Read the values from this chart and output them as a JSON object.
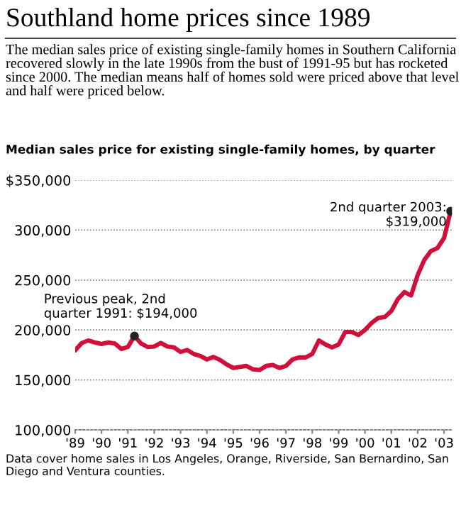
{
  "chart_data": {
    "type": "line",
    "title": "Southland home prices since 1989",
    "subtitle": "The median sales price of existing single-family homes in Southern California recovered slowly in the late 1990s from the bust of 1991-95 but has rocketed since 2000. The median means half of homes sold were priced above that level and half were priced below.",
    "ylabel": "Median sales price for existing single-family homes, by quarter",
    "x": [
      1989,
      1989.25,
      1989.5,
      1989.75,
      1990,
      1990.25,
      1990.5,
      1990.75,
      1991,
      1991.25,
      1991.5,
      1991.75,
      1992,
      1992.25,
      1992.5,
      1992.75,
      1993,
      1993.25,
      1993.5,
      1993.75,
      1994,
      1994.25,
      1994.5,
      1994.75,
      1995,
      1995.25,
      1995.5,
      1995.75,
      1996,
      1996.25,
      1996.5,
      1996.75,
      1997,
      1997.25,
      1997.5,
      1997.75,
      1998,
      1998.25,
      1998.5,
      1998.75,
      1999,
      1999.25,
      1999.5,
      1999.75,
      2000,
      2000.25,
      2000.5,
      2000.75,
      2001,
      2001.25,
      2001.5,
      2001.75,
      2002,
      2002.25,
      2002.5,
      2002.75,
      2003,
      2003.25
    ],
    "series": [
      {
        "color": "#d0103a",
        "values": [
          179500,
          187000,
          189500,
          187500,
          186000,
          187500,
          186500,
          181000,
          183000,
          194000,
          186500,
          183000,
          183500,
          187000,
          183500,
          182500,
          178000,
          180000,
          176000,
          174000,
          170500,
          173000,
          170000,
          165500,
          162000,
          163000,
          164000,
          160500,
          160000,
          164000,
          165000,
          162000,
          164000,
          170500,
          172500,
          172500,
          176000,
          189500,
          185500,
          182500,
          185500,
          198000,
          198000,
          195000,
          200000,
          207000,
          212000,
          213000,
          219000,
          231000,
          238000,
          234500,
          255000,
          270000,
          279000,
          282000,
          292000,
          319000
        ]
      }
    ],
    "xlim": [
      1989,
      2003.3
    ],
    "xticks": [
      {
        "value": 1989,
        "label": "'89"
      },
      {
        "value": 1990,
        "label": "'90"
      },
      {
        "value": 1991,
        "label": "'91"
      },
      {
        "value": 1992,
        "label": "'92"
      },
      {
        "value": 1993,
        "label": "'93"
      },
      {
        "value": 1994,
        "label": "'94"
      },
      {
        "value": 1995,
        "label": "'95"
      },
      {
        "value": 1996,
        "label": "'96"
      },
      {
        "value": 1997,
        "label": "'97"
      },
      {
        "value": 1998,
        "label": "'98"
      },
      {
        "value": 1999,
        "label": "'99"
      },
      {
        "value": 2000,
        "label": "'00"
      },
      {
        "value": 2001,
        "label": "'01"
      },
      {
        "value": 2002,
        "label": "'02"
      },
      {
        "value": 2003,
        "label": "'03"
      }
    ],
    "ylim": [
      100000,
      350000
    ],
    "yticks": [
      {
        "value": 100000,
        "label": "100,000"
      },
      {
        "value": 150000,
        "label": "150,000"
      },
      {
        "value": 200000,
        "label": "200,000"
      },
      {
        "value": 250000,
        "label": "250,000"
      },
      {
        "value": 300000,
        "label": "300,000"
      },
      {
        "value": 350000,
        "label": "$350,000"
      }
    ],
    "grid": "y",
    "annotations": [
      {
        "text": "Previous peak, 2nd\nquarter 1991: $194,000",
        "x": 1991.25,
        "y": 194000
      },
      {
        "text": "2nd quarter 2003:\n$319,000",
        "x": 2003.25,
        "y": 319000
      },
      "Data cover home sales in Los Angeles, Orange, Riverside, San Bernardino, San Diego and Ventura counties."
    ]
  }
}
